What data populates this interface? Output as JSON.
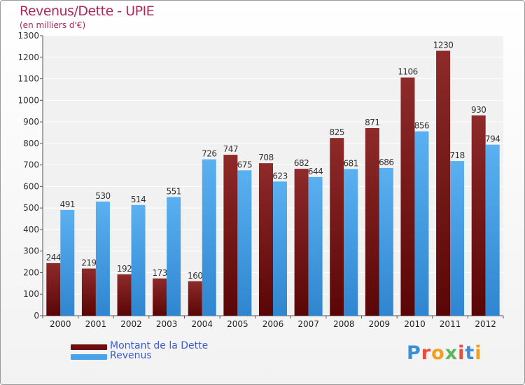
{
  "chart_data": {
    "type": "bar",
    "title": "Revenus/Dette - UPIE",
    "subtitle": "(en milliers d'€)",
    "categories": [
      "2000",
      "2001",
      "2002",
      "2003",
      "2004",
      "2005",
      "2006",
      "2007",
      "2008",
      "2009",
      "2010",
      "2011",
      "2012"
    ],
    "series": [
      {
        "name": "Montant de la Dette",
        "color": "#7a1212",
        "values": [
          244,
          219,
          192,
          173,
          160,
          747,
          708,
          682,
          825,
          871,
          1106,
          1230,
          930
        ]
      },
      {
        "name": "Revenus",
        "color": "#4aa3e8",
        "values": [
          491,
          530,
          514,
          551,
          726,
          675,
          623,
          644,
          681,
          686,
          856,
          718,
          794
        ]
      }
    ],
    "yticks": [
      0,
      100,
      200,
      300,
      400,
      500,
      600,
      700,
      800,
      900,
      1000,
      1100,
      1200,
      1300
    ],
    "ylim": [
      0,
      1300
    ],
    "grid": true,
    "legend_position": "bottom-left"
  },
  "logo": {
    "text": "Proxiti",
    "colors": [
      "#3a8fd8",
      "#e94b3c",
      "#f0a020",
      "#5cb85c",
      "#e94b3c",
      "#3a8fd8",
      "#f0a020"
    ]
  }
}
